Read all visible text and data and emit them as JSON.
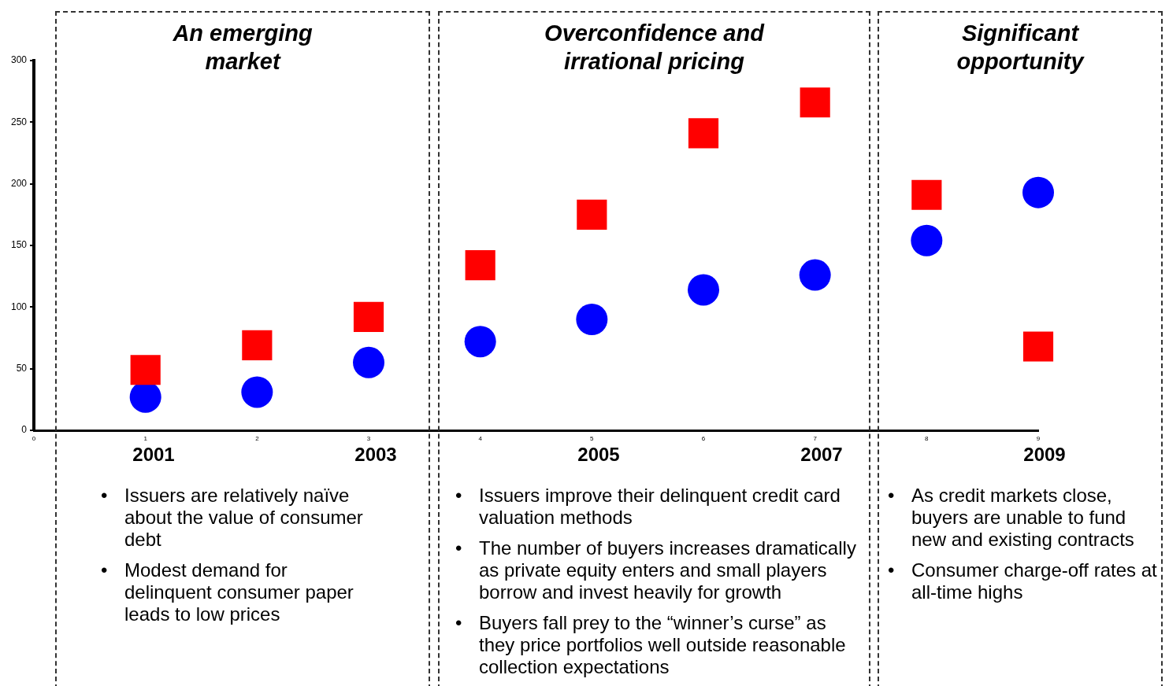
{
  "chart_data": {
    "type": "scatter",
    "x": [
      1,
      2,
      3,
      4,
      5,
      6,
      7,
      8,
      9
    ],
    "series": [
      {
        "color": "#ff0000",
        "marker": "square",
        "values": [
          49,
          69,
          92,
          134,
          175,
          241,
          266,
          191,
          68
        ]
      },
      {
        "color": "#0000ff",
        "marker": "circle",
        "values": [
          27,
          31,
          55,
          72,
          90,
          114,
          126,
          154,
          193
        ]
      }
    ],
    "xlim": [
      0,
      9
    ],
    "xticks": [
      0,
      1,
      2,
      3,
      4,
      5,
      6,
      7,
      8,
      9
    ],
    "ylim": [
      0,
      300
    ],
    "yticks": [
      0,
      50,
      100,
      150,
      200,
      250,
      300
    ],
    "grid": false,
    "legend": false,
    "annotations": [
      "An emerging market",
      "• Issuers are relatively naïve about the value of consumer debt",
      "• Modest demand for delinquent consumer paper leads to low prices",
      "Overconfidence and irrational pricing",
      "• Issuers improve their delinquent credit card valuation methods",
      "• The number of buyers increases dramatically as private equity enters and small players borrow and invest heavily for growth",
      "• Buyers fall prey to the “winner’s curse” as they price portfolios well outside reasonable collection expectations",
      "Significant opportunity",
      "• As credit markets close, buyers are unable to fund new and existing contracts",
      "• Consumer charge-off rates at all-time highs",
      "2001",
      "2003",
      "2005",
      "2007",
      "2009"
    ]
  }
}
